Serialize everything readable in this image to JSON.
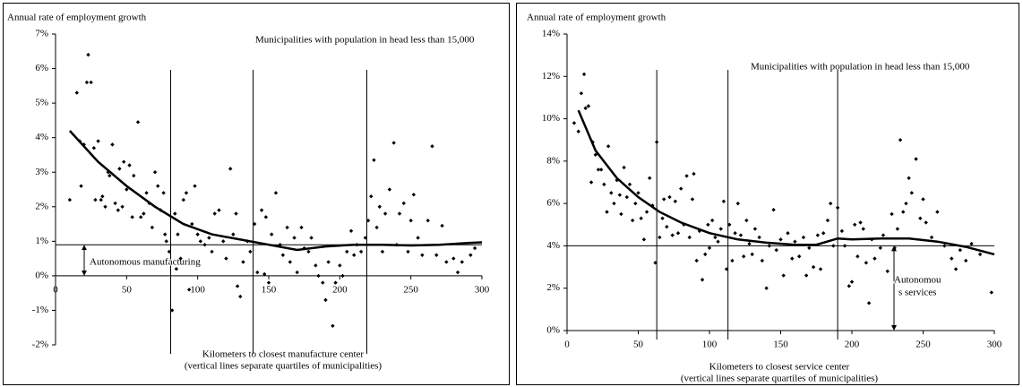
{
  "chart_data": [
    {
      "type": "scatter",
      "ylabel": "Annual rate of employment growth",
      "subtitle": "Municipalities with population in head less than 15,000",
      "xlabel": [
        "Kilometers to closest manufacture center",
        "(vertical lines separate quartiles of municipalities)"
      ],
      "annotation": [
        "Autonomous manufacturing"
      ],
      "color": "#000000",
      "xlim": [
        0,
        300
      ],
      "xticks": [
        0,
        50,
        100,
        150,
        200,
        250,
        300
      ],
      "ylim": [
        -2,
        7
      ],
      "yticks": [
        {
          "value": -2,
          "label": "-2%"
        },
        {
          "value": -1,
          "label": "-1%"
        },
        {
          "value": 0,
          "label": "0%"
        },
        {
          "value": 1,
          "label": "1%"
        },
        {
          "value": 2,
          "label": "2%"
        },
        {
          "value": 3,
          "label": "3%"
        },
        {
          "value": 4,
          "label": "4%"
        },
        {
          "value": 5,
          "label": "5%"
        },
        {
          "value": 6,
          "label": "6%"
        },
        {
          "value": 7,
          "label": "7%"
        }
      ],
      "vlines": [
        81,
        139,
        219
      ],
      "hline": 0.9,
      "x": [
        10,
        15,
        17,
        18,
        20,
        22,
        23,
        25,
        27,
        28,
        30,
        32,
        33,
        35,
        37,
        38,
        40,
        42,
        44,
        45,
        47,
        48,
        50,
        52,
        54,
        55,
        58,
        60,
        62,
        64,
        66,
        68,
        70,
        72,
        74,
        76,
        77,
        78,
        80,
        82,
        84,
        85,
        86,
        88,
        90,
        92,
        94,
        96,
        98,
        100,
        102,
        105,
        108,
        110,
        112,
        115,
        118,
        120,
        123,
        125,
        127,
        128,
        130,
        132,
        135,
        137,
        140,
        142,
        145,
        147,
        148,
        150,
        152,
        155,
        158,
        160,
        163,
        165,
        168,
        170,
        173,
        175,
        178,
        180,
        183,
        185,
        188,
        190,
        192,
        195,
        197,
        200,
        202,
        205,
        208,
        210,
        212,
        215,
        218,
        220,
        222,
        224,
        226,
        228,
        230,
        232,
        235,
        238,
        240,
        242,
        245,
        248,
        250,
        252,
        255,
        258,
        262,
        265,
        268,
        272,
        275,
        280,
        283,
        286,
        292,
        295
      ],
      "values": [
        2.2,
        5.3,
        3.9,
        2.6,
        3.8,
        5.6,
        6.4,
        5.6,
        3.7,
        2.2,
        3.9,
        2.2,
        2.3,
        2.0,
        3.0,
        2.9,
        3.8,
        2.1,
        1.9,
        3.1,
        2.0,
        3.3,
        2.5,
        3.2,
        1.7,
        2.9,
        4.45,
        1.7,
        1.8,
        2.4,
        2.1,
        1.4,
        3.0,
        2.6,
        1.9,
        2.4,
        1.2,
        1.0,
        0.7,
        -1.0,
        1.8,
        0.2,
        1.2,
        0.5,
        2.2,
        2.4,
        -0.4,
        1.5,
        2.6,
        1.2,
        1.0,
        0.9,
        1.1,
        0.7,
        1.8,
        1.9,
        1.0,
        0.5,
        3.1,
        1.2,
        1.8,
        -0.3,
        -0.6,
        0.4,
        1.0,
        0.7,
        1.5,
        0.1,
        1.9,
        0.05,
        1.7,
        -0.2,
        1.2,
        2.4,
        0.9,
        0.6,
        1.4,
        0.4,
        1.1,
        0.1,
        1.4,
        0.8,
        0.7,
        1.1,
        0.3,
        0.0,
        -0.2,
        -0.7,
        0.4,
        -1.45,
        -0.2,
        0.3,
        0.0,
        0.7,
        1.3,
        0.6,
        0.9,
        0.7,
        1.1,
        1.6,
        2.3,
        3.35,
        1.4,
        2.0,
        0.7,
        1.8,
        2.5,
        3.85,
        0.9,
        1.8,
        2.1,
        0.7,
        1.6,
        2.35,
        1.1,
        0.6,
        1.6,
        3.75,
        0.6,
        1.45,
        0.4,
        0.5,
        0.1,
        0.4,
        0.6,
        0.8
      ],
      "trend": {
        "x": [
          10,
          30,
          50,
          70,
          90,
          110,
          130,
          150,
          170,
          190,
          210,
          230,
          250,
          270,
          290,
          300
        ],
        "values": [
          4.2,
          3.3,
          2.6,
          2.0,
          1.5,
          1.2,
          1.05,
          0.9,
          0.75,
          0.85,
          0.9,
          0.9,
          0.88,
          0.9,
          0.95,
          0.97
        ]
      }
    },
    {
      "type": "scatter",
      "ylabel": "Annual rate of employment growth",
      "subtitle": "Municipalities with population in head less than 15,000",
      "xlabel": [
        "Kilometers to closest service center",
        "(vertical lines separate quartiles of municipalities)"
      ],
      "annotation": [
        "Autonomou",
        "s services"
      ],
      "color": "#000000",
      "xlim": [
        0,
        300
      ],
      "xticks": [
        0,
        50,
        100,
        150,
        200,
        250,
        300
      ],
      "ylim": [
        0,
        14
      ],
      "yticks": [
        {
          "value": 0,
          "label": "0%"
        },
        {
          "value": 2,
          "label": "2%"
        },
        {
          "value": 4,
          "label": "4%"
        },
        {
          "value": 6,
          "label": "6%"
        },
        {
          "value": 8,
          "label": "8%"
        },
        {
          "value": 10,
          "label": "10%"
        },
        {
          "value": 12,
          "label": "12%"
        },
        {
          "value": 14,
          "label": "14%"
        }
      ],
      "vlines": [
        63,
        113,
        190
      ],
      "hline": 4,
      "x": [
        5,
        8,
        10,
        12,
        13,
        15,
        17,
        18,
        20,
        22,
        24,
        26,
        28,
        29,
        31,
        33,
        35,
        37,
        38,
        40,
        42,
        44,
        46,
        48,
        50,
        52,
        54,
        56,
        58,
        60,
        62,
        63,
        65,
        67,
        68,
        70,
        72,
        74,
        76,
        78,
        80,
        82,
        84,
        86,
        88,
        89,
        91,
        93,
        95,
        97,
        99,
        100,
        102,
        104,
        106,
        108,
        110,
        112,
        114,
        116,
        118,
        120,
        122,
        124,
        126,
        128,
        130,
        132,
        135,
        137,
        140,
        142,
        145,
        147,
        150,
        152,
        155,
        158,
        160,
        163,
        166,
        168,
        170,
        173,
        176,
        178,
        180,
        183,
        185,
        187,
        190,
        193,
        195,
        198,
        200,
        202,
        204,
        206,
        208,
        210,
        212,
        214,
        216,
        220,
        222,
        225,
        228,
        230,
        232,
        234,
        236,
        238,
        240,
        242,
        245,
        248,
        250,
        252,
        256,
        260,
        265,
        270,
        273,
        276,
        280,
        284,
        290,
        298
      ],
      "values": [
        9.8,
        9.4,
        11.2,
        12.1,
        10.5,
        10.6,
        7.0,
        8.9,
        8.3,
        7.6,
        7.6,
        6.9,
        5.6,
        8.7,
        6.5,
        6.0,
        7.1,
        6.4,
        5.5,
        7.7,
        6.3,
        6.9,
        5.2,
        6.0,
        6.5,
        5.3,
        4.3,
        5.6,
        7.2,
        5.9,
        3.2,
        8.9,
        4.4,
        5.3,
        6.2,
        4.9,
        6.3,
        4.5,
        6.1,
        4.6,
        6.7,
        5.0,
        7.3,
        4.4,
        6.2,
        7.4,
        3.3,
        4.7,
        2.4,
        3.6,
        5.0,
        3.9,
        5.2,
        4.4,
        4.2,
        4.8,
        6.1,
        2.9,
        5.0,
        3.3,
        4.6,
        6.0,
        4.5,
        3.5,
        5.2,
        4.1,
        3.6,
        4.8,
        4.4,
        3.3,
        2.0,
        4.0,
        5.7,
        3.8,
        4.3,
        2.6,
        4.6,
        3.4,
        4.2,
        3.5,
        4.4,
        2.6,
        3.9,
        3.0,
        4.5,
        2.9,
        4.6,
        5.2,
        6.0,
        4.0,
        5.8,
        4.7,
        4.0,
        2.1,
        2.3,
        5.0,
        3.5,
        5.1,
        4.8,
        3.2,
        1.3,
        4.3,
        3.4,
        3.9,
        4.5,
        2.8,
        5.5,
        3.9,
        4.8,
        9.0,
        5.6,
        6.0,
        7.2,
        6.5,
        8.1,
        5.3,
        6.2,
        5.1,
        4.4,
        5.6,
        4.0,
        3.4,
        2.9,
        3.8,
        3.3,
        4.1,
        3.6,
        1.8
      ],
      "trend": {
        "x": [
          8,
          20,
          35,
          50,
          65,
          80,
          100,
          120,
          140,
          160,
          175,
          190,
          200,
          220,
          240,
          260,
          280,
          300
        ],
        "values": [
          10.4,
          8.5,
          7.2,
          6.3,
          5.6,
          5.1,
          4.6,
          4.3,
          4.15,
          4.05,
          4.05,
          4.35,
          4.3,
          4.35,
          4.35,
          4.2,
          3.95,
          3.6
        ]
      }
    }
  ]
}
